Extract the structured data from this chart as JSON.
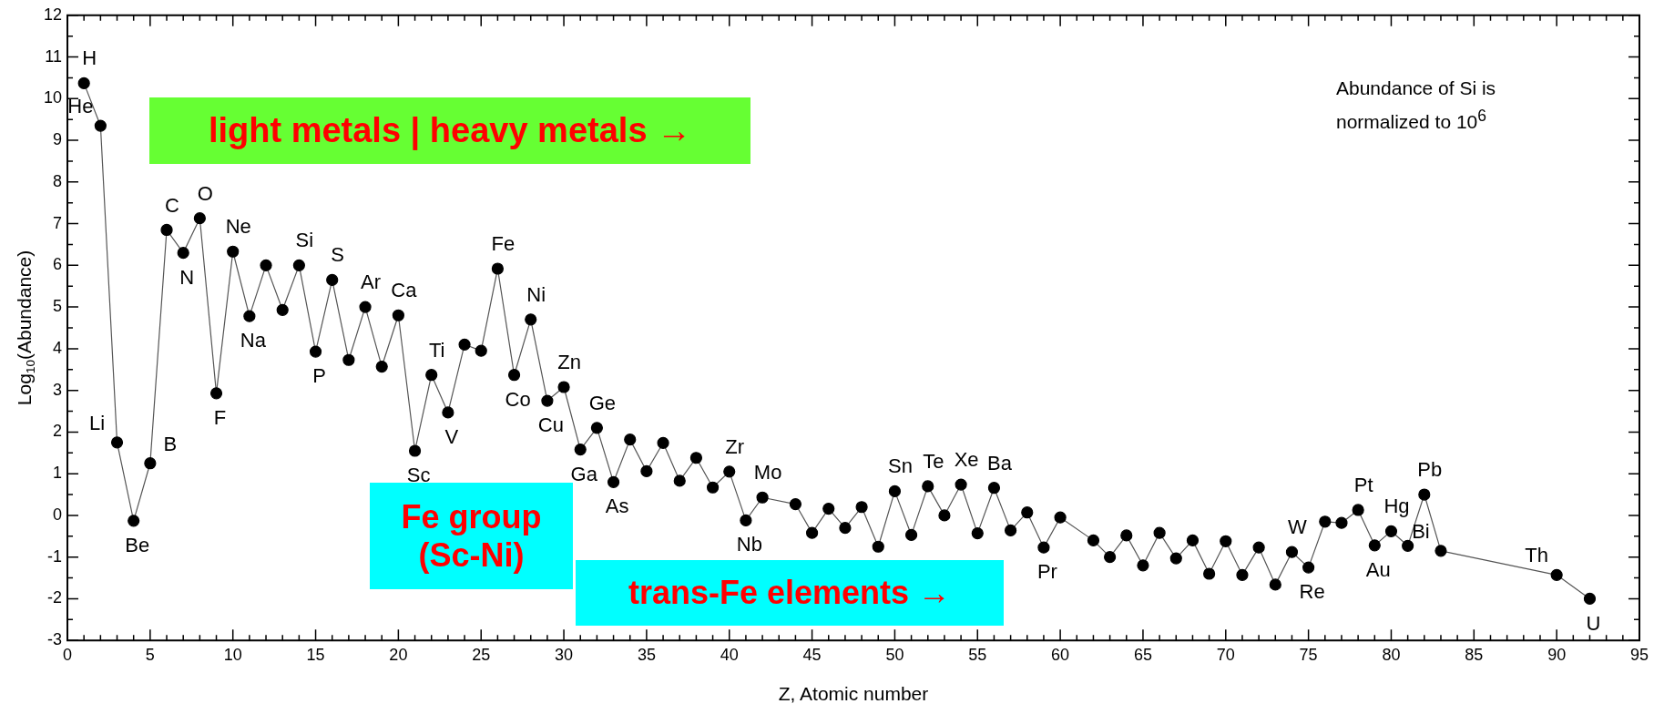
{
  "chart_data": {
    "type": "line",
    "xlabel": "Z, Atomic number",
    "ylabel": "Log$_{10}$(Abundance)",
    "xlim": [
      0,
      95
    ],
    "xticks": [
      0,
      5,
      10,
      15,
      20,
      25,
      30,
      35,
      40,
      45,
      50,
      55,
      60,
      65,
      70,
      75,
      80,
      85,
      90,
      95
    ],
    "ylim": [
      -3,
      12
    ],
    "yticks": [
      -3,
      -2,
      -1,
      0,
      1,
      2,
      3,
      4,
      5,
      6,
      7,
      8,
      9,
      10,
      11,
      12
    ],
    "grid": false,
    "legend": false,
    "marker": "circle",
    "line_style": "solid",
    "series": [
      {
        "color": "#000000",
        "x": [
          1,
          2,
          3,
          4,
          5,
          6,
          7,
          8,
          9,
          10,
          11,
          12,
          13,
          14,
          15,
          16,
          17,
          18,
          19,
          20,
          21,
          22,
          23,
          24,
          25,
          26,
          27,
          28,
          29,
          30,
          31,
          32,
          33,
          34,
          35,
          36,
          37,
          38,
          39,
          40,
          41,
          42,
          44,
          45,
          46,
          47,
          48,
          49,
          50,
          51,
          52,
          53,
          54,
          55,
          56,
          57,
          58,
          59,
          60,
          62,
          63,
          64,
          65,
          66,
          67,
          68,
          69,
          70,
          71,
          72,
          73,
          74,
          75,
          76,
          77,
          78,
          79,
          80,
          81,
          82,
          83,
          90,
          92
        ],
        "values": [
          10.37,
          9.35,
          1.75,
          -0.13,
          1.25,
          6.85,
          6.3,
          7.13,
          2.93,
          6.33,
          4.78,
          6.0,
          4.93,
          6.0,
          3.93,
          5.65,
          3.73,
          5.0,
          3.57,
          4.8,
          1.55,
          3.37,
          2.47,
          4.1,
          3.95,
          5.92,
          3.37,
          4.7,
          2.75,
          3.08,
          1.58,
          2.1,
          0.8,
          1.82,
          1.06,
          1.74,
          0.83,
          1.38,
          0.67,
          1.05,
          -0.12,
          0.43,
          0.27,
          -0.42,
          0.16,
          -0.3,
          0.2,
          -0.75,
          0.58,
          -0.47,
          0.7,
          0.0,
          0.74,
          -0.43,
          0.66,
          -0.36,
          0.07,
          -0.77,
          -0.05,
          -0.6,
          -1.0,
          -0.48,
          -1.2,
          -0.42,
          -1.03,
          -0.6,
          -1.4,
          -0.62,
          -1.43,
          -0.77,
          -1.66,
          -0.88,
          -1.25,
          -0.15,
          -0.18,
          0.13,
          -0.72,
          -0.38,
          -0.73,
          0.5,
          -0.85,
          -1.43,
          -2.0
        ]
      }
    ],
    "annotations": [
      "light metals | heavy metals →",
      "Fe group (Sc-Ni)",
      "trans-Fe elements →",
      "Abundance of Si is normalized to 10$^{6}$",
      {
        "text": "H",
        "x": 1,
        "y": 10.37
      },
      {
        "text": "He",
        "x": 2,
        "y": 9.35
      },
      {
        "text": "Li",
        "x": 3,
        "y": 1.75
      },
      {
        "text": "Be",
        "x": 4,
        "y": -0.13
      },
      {
        "text": "B",
        "x": 5,
        "y": 1.25
      },
      {
        "text": "C",
        "x": 6,
        "y": 6.85
      },
      {
        "text": "N",
        "x": 7,
        "y": 6.3
      },
      {
        "text": "O",
        "x": 8,
        "y": 7.13
      },
      {
        "text": "F",
        "x": 9,
        "y": 2.93
      },
      {
        "text": "Ne",
        "x": 10,
        "y": 6.33
      },
      {
        "text": "Na",
        "x": 11,
        "y": 4.78
      },
      {
        "text": "Si",
        "x": 14,
        "y": 6.0
      },
      {
        "text": "P",
        "x": 15,
        "y": 3.93
      },
      {
        "text": "S",
        "x": 16,
        "y": 5.65
      },
      {
        "text": "Ar",
        "x": 18,
        "y": 5.0
      },
      {
        "text": "Ca",
        "x": 20,
        "y": 4.8
      },
      {
        "text": "Sc",
        "x": 21,
        "y": 1.55
      },
      {
        "text": "Ti",
        "x": 22,
        "y": 3.37
      },
      {
        "text": "V",
        "x": 23,
        "y": 2.47
      },
      {
        "text": "Fe",
        "x": 26,
        "y": 5.92
      },
      {
        "text": "Co",
        "x": 27,
        "y": 3.37
      },
      {
        "text": "Ni",
        "x": 28,
        "y": 4.7
      },
      {
        "text": "Cu",
        "x": 29,
        "y": 2.75
      },
      {
        "text": "Zn",
        "x": 30,
        "y": 3.08
      },
      {
        "text": "Ga",
        "x": 31,
        "y": 1.58
      },
      {
        "text": "Ge",
        "x": 32,
        "y": 2.1
      },
      {
        "text": "As",
        "x": 33,
        "y": 0.8
      },
      {
        "text": "Zr",
        "x": 40,
        "y": 1.05
      },
      {
        "text": "Nb",
        "x": 41,
        "y": -0.12
      },
      {
        "text": "Mo",
        "x": 42,
        "y": 0.43
      },
      {
        "text": "Sn",
        "x": 50,
        "y": 0.58
      },
      {
        "text": "Te",
        "x": 52,
        "y": 0.7
      },
      {
        "text": "Xe",
        "x": 54,
        "y": 0.74
      },
      {
        "text": "Ba",
        "x": 56,
        "y": 0.66
      },
      {
        "text": "Pr",
        "x": 59,
        "y": -0.77
      },
      {
        "text": "W",
        "x": 74,
        "y": -0.88
      },
      {
        "text": "Re",
        "x": 75,
        "y": -1.25
      },
      {
        "text": "Pt",
        "x": 78,
        "y": 0.13
      },
      {
        "text": "Au",
        "x": 79,
        "y": -0.72
      },
      {
        "text": "Hg",
        "x": 80,
        "y": -0.38
      },
      {
        "text": "Pb",
        "x": 82,
        "y": 0.5
      },
      {
        "text": "Bi",
        "x": 83,
        "y": -0.85
      },
      {
        "text": "Th",
        "x": 90,
        "y": -1.43
      },
      {
        "text": "U",
        "x": 92,
        "y": -2.0
      }
    ]
  }
}
